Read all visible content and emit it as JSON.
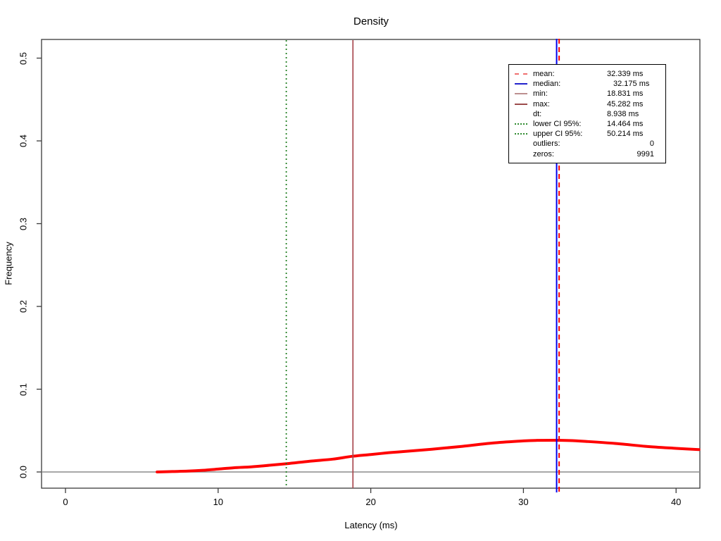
{
  "chart_data": {
    "type": "line",
    "title": "Density",
    "xlabel": "Latency (ms)",
    "ylabel": "Frequency",
    "x_tick_labels": [
      "0",
      "10",
      "20",
      "30",
      "40"
    ],
    "x_tick_values": [
      0,
      10,
      20,
      30,
      40
    ],
    "y_tick_labels": [
      "0.0",
      "0.1",
      "0.2",
      "0.3",
      "0.4",
      "0.5"
    ],
    "y_tick_values": [
      0.0,
      0.1,
      0.2,
      0.3,
      0.4,
      0.5
    ],
    "xlim": [
      -1.6,
      41.5
    ],
    "ylim": [
      -0.019,
      0.523
    ],
    "grid": false,
    "legend_position": "top-right",
    "series": [
      {
        "name": "density-curve",
        "color": "#FF0000",
        "x": [
          6,
          7,
          8,
          9,
          10,
          11,
          12,
          13,
          14.5,
          16,
          17.5,
          18.8,
          20,
          21,
          22,
          24,
          26,
          28,
          30,
          31,
          32,
          33,
          34,
          36,
          38,
          40,
          41.5
        ],
        "y": [
          0,
          0.0005,
          0.001,
          0.002,
          0.0035,
          0.005,
          0.006,
          0.0075,
          0.01,
          0.013,
          0.0155,
          0.019,
          0.021,
          0.023,
          0.0245,
          0.0275,
          0.031,
          0.035,
          0.0375,
          0.0382,
          0.0383,
          0.038,
          0.037,
          0.0345,
          0.031,
          0.0285,
          0.027
        ]
      }
    ],
    "vlines": [
      {
        "name": "mean",
        "x": 32.339,
        "style": "dashed",
        "color": "#FF0000",
        "overhang": true
      },
      {
        "name": "median",
        "x": 32.175,
        "style": "solid",
        "color": "#0000EE",
        "overhang": true
      },
      {
        "name": "min",
        "x": 18.831,
        "style": "solid",
        "color": "#A9494F",
        "overhang": false
      },
      {
        "name": "max",
        "x": 45.282,
        "style": "solid",
        "color": "#8B3A3A",
        "overhang": false
      },
      {
        "name": "lower-ci",
        "x": 14.464,
        "style": "dotted",
        "color": "#1B7B1B",
        "overhang": false
      },
      {
        "name": "upper-ci",
        "x": 50.214,
        "style": "dotted",
        "color": "#1B7B1B",
        "overhang": false
      }
    ]
  },
  "colors": {
    "box": "#3A3A3A",
    "zero_line": "#8C8C8C",
    "tick": "#3A3A3A",
    "curve": "#FF0000",
    "legend_border": "#000000",
    "legend_bg": "#FFFFFF"
  },
  "legend": {
    "rows": [
      {
        "label": "mean:",
        "value": "32.339 ms",
        "swatch": "dashed",
        "swatch_color": "#F07070",
        "value_class": ""
      },
      {
        "label": "median:",
        "value": "32.175 ms",
        "swatch": "solid",
        "swatch_color": "#2222CC",
        "value_class": "indent"
      },
      {
        "label": "min:",
        "value": "18.831 ms",
        "swatch": "solid",
        "swatch_color": "#BC8F8F",
        "value_class": ""
      },
      {
        "label": "max:",
        "value": "45.282 ms",
        "swatch": "solid",
        "swatch_color": "#9C4B4B",
        "value_class": ""
      },
      {
        "label": "dt:",
        "value": "8.938 ms",
        "swatch": "none",
        "swatch_color": "",
        "value_class": ""
      },
      {
        "label": "lower CI 95%:",
        "value": "14.464 ms",
        "swatch": "dotted",
        "swatch_color": "#2E8B2E",
        "value_class": ""
      },
      {
        "label": "upper CI 95%:",
        "value": "50.214 ms",
        "swatch": "dotted",
        "swatch_color": "#2E8B2E",
        "value_class": ""
      },
      {
        "label": "outliers:",
        "value": "0",
        "swatch": "none",
        "swatch_color": "",
        "value_class": "num"
      },
      {
        "label": "zeros:",
        "value": "9991",
        "swatch": "none",
        "swatch_color": "",
        "value_class": "num"
      }
    ]
  }
}
